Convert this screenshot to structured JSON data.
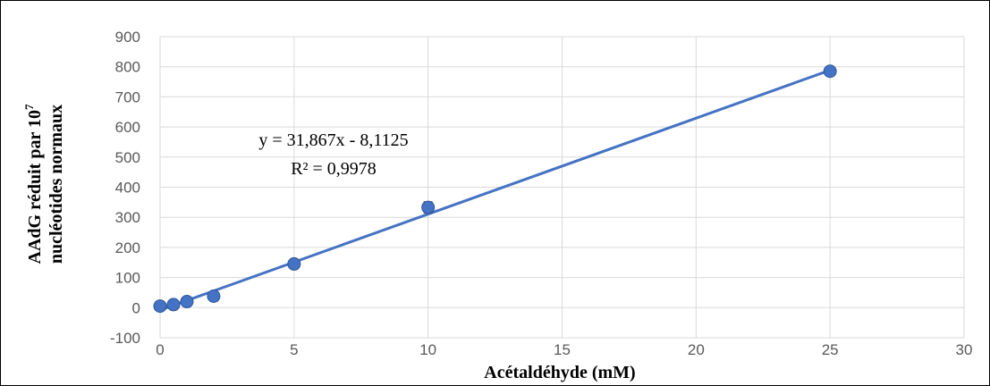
{
  "chart_data": {
    "type": "scatter",
    "title": "",
    "xlabel": "Acétaldéhyde (mM)",
    "ylabel_line1": "AAdG réduit par 10",
    "ylabel_sup": "7",
    "ylabel_line2": "nucléotides normaux",
    "xlim": [
      0,
      30
    ],
    "ylim": [
      -100,
      900
    ],
    "xticks": [
      0,
      5,
      10,
      15,
      20,
      25,
      30
    ],
    "yticks": [
      -100,
      0,
      100,
      200,
      300,
      400,
      500,
      600,
      700,
      800,
      900
    ],
    "grid": true,
    "legend": "none",
    "series": [
      {
        "color": "#4472C4",
        "x": [
          0,
          0.5,
          1,
          2,
          5,
          10,
          25
        ],
        "y": [
          5,
          10,
          20,
          38,
          145,
          333,
          785
        ],
        "error": [
          0,
          0,
          0,
          0,
          5,
          18,
          12
        ]
      }
    ],
    "trendline": {
      "slope": 31.867,
      "intercept": -8.1125,
      "color": "#4472C4",
      "equation": "y = 31,867x - 8,1125",
      "r2": "R² = 0,9978"
    }
  }
}
